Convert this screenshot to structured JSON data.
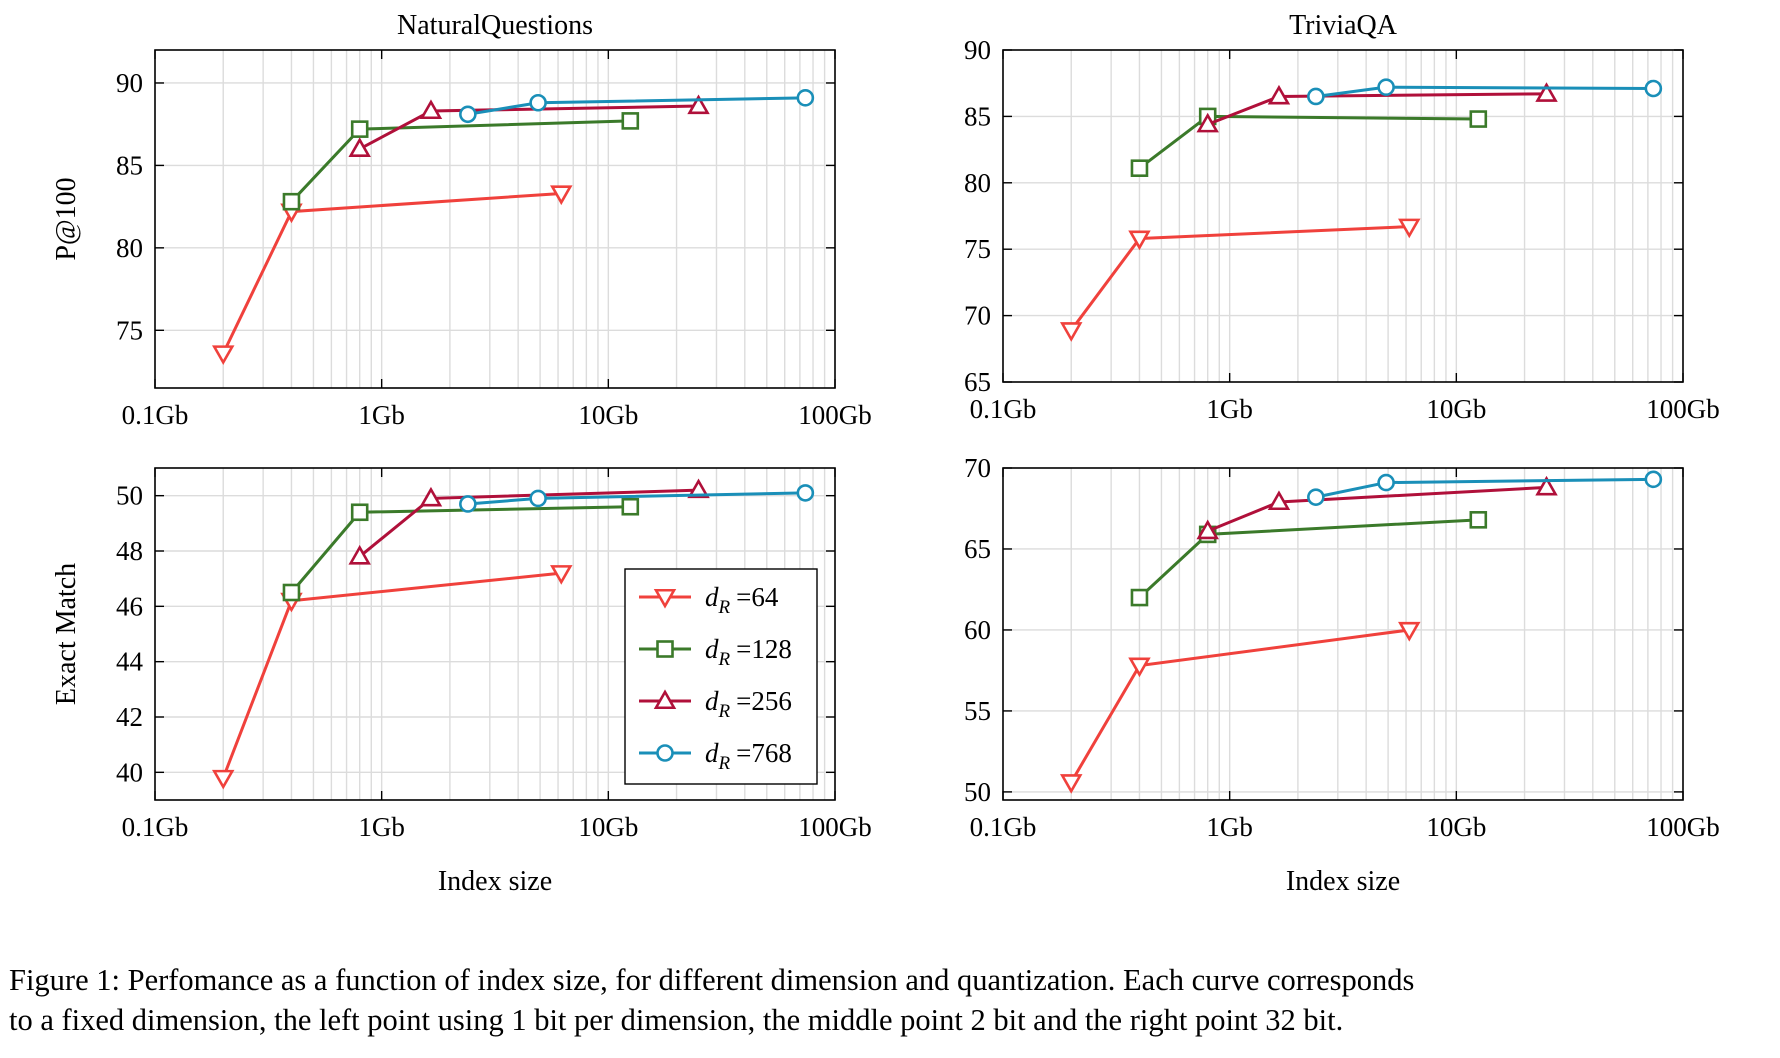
{
  "figure": {
    "caption_line1": "Figure 1: Perfomance as a function of index size, for different dimension and quantization. Each curve corresponds",
    "caption_line2": "to a fixed dimension, the left point using 1 bit per dimension, the middle point 2 bit and the right point 32 bit."
  },
  "colors": {
    "dR_64": "#f0413c",
    "dR_128": "#3b7a2a",
    "dR_256": "#b0103a",
    "dR_768": "#1a8fb8",
    "grid": "#dcdcdc",
    "axis": "#000000"
  },
  "legend": {
    "placement": "lower-right of bottom-left panel",
    "entries": [
      {
        "prefix": "d",
        "subscript": "R",
        "value": "=64",
        "series": "dR_64",
        "marker": "triangle-down"
      },
      {
        "prefix": "d",
        "subscript": "R",
        "value": "=128",
        "series": "dR_128",
        "marker": "square"
      },
      {
        "prefix": "d",
        "subscript": "R",
        "value": "=256",
        "series": "dR_256",
        "marker": "triangle-up"
      },
      {
        "prefix": "d",
        "subscript": "R",
        "value": "=768",
        "series": "dR_768",
        "marker": "circle"
      }
    ]
  },
  "chart_data": [
    {
      "type": "line",
      "title": "NaturalQuestions",
      "ylabel": "P@100",
      "xlabel": "",
      "xscale": "log",
      "xlim": [
        0.1,
        100
      ],
      "ylim": [
        71.5,
        92
      ],
      "xticks": [
        0.1,
        1,
        10,
        100
      ],
      "xtick_labels": [
        "0.1Gb",
        "1Gb",
        "10Gb",
        "100Gb"
      ],
      "yticks": [
        75,
        80,
        85,
        90
      ],
      "ytick_labels": [
        "75",
        "80",
        "85",
        "90"
      ],
      "grid": true,
      "series": [
        {
          "key": "dR_64",
          "x": [
            0.2,
            0.4,
            6.2
          ],
          "y": [
            73.6,
            82.2,
            83.3
          ]
        },
        {
          "key": "dR_128",
          "x": [
            0.4,
            0.8,
            12.5
          ],
          "y": [
            82.8,
            87.2,
            87.7
          ]
        },
        {
          "key": "dR_256",
          "x": [
            0.8,
            1.65,
            25
          ],
          "y": [
            86.0,
            88.3,
            88.6
          ]
        },
        {
          "key": "dR_768",
          "x": [
            2.4,
            4.9,
            74
          ],
          "y": [
            88.1,
            88.8,
            89.1
          ]
        }
      ]
    },
    {
      "type": "line",
      "title": "TriviaQA",
      "ylabel": "",
      "xlabel": "",
      "xscale": "log",
      "xlim": [
        0.1,
        100
      ],
      "ylim": [
        65,
        90
      ],
      "xticks": [
        0.1,
        1,
        10,
        100
      ],
      "xtick_labels": [
        "0.1Gb",
        "1Gb",
        "10Gb",
        "100Gb"
      ],
      "yticks": [
        65,
        70,
        75,
        80,
        85,
        90
      ],
      "ytick_labels": [
        "65",
        "70",
        "75",
        "80",
        "85",
        "90"
      ],
      "grid": true,
      "series": [
        {
          "key": "dR_64",
          "x": [
            0.2,
            0.4,
            6.2
          ],
          "y": [
            68.9,
            75.8,
            76.7
          ]
        },
        {
          "key": "dR_128",
          "x": [
            0.4,
            0.8,
            12.5
          ],
          "y": [
            81.1,
            85.0,
            84.8
          ]
        },
        {
          "key": "dR_256",
          "x": [
            0.8,
            1.65,
            25
          ],
          "y": [
            84.4,
            86.5,
            86.7
          ]
        },
        {
          "key": "dR_768",
          "x": [
            2.4,
            4.9,
            74
          ],
          "y": [
            86.5,
            87.2,
            87.1
          ]
        }
      ]
    },
    {
      "type": "line",
      "title": "",
      "ylabel": "Exact Match",
      "xlabel": "Index size",
      "xscale": "log",
      "xlim": [
        0.1,
        100
      ],
      "ylim": [
        39,
        51
      ],
      "xticks": [
        0.1,
        1,
        10,
        100
      ],
      "xtick_labels": [
        "0.1Gb",
        "1Gb",
        "10Gb",
        "100Gb"
      ],
      "yticks": [
        40,
        42,
        44,
        46,
        48,
        50
      ],
      "ytick_labels": [
        "40",
        "42",
        "44",
        "46",
        "48",
        "50"
      ],
      "grid": true,
      "series": [
        {
          "key": "dR_64",
          "x": [
            0.2,
            0.4,
            6.2
          ],
          "y": [
            39.8,
            46.2,
            47.2
          ]
        },
        {
          "key": "dR_128",
          "x": [
            0.4,
            0.8,
            12.5
          ],
          "y": [
            46.5,
            49.4,
            49.6
          ]
        },
        {
          "key": "dR_256",
          "x": [
            0.8,
            1.65,
            25
          ],
          "y": [
            47.8,
            49.9,
            50.2
          ]
        },
        {
          "key": "dR_768",
          "x": [
            2.4,
            4.9,
            74
          ],
          "y": [
            49.7,
            49.9,
            50.1
          ]
        }
      ]
    },
    {
      "type": "line",
      "title": "",
      "ylabel": "",
      "xlabel": "Index size",
      "xscale": "log",
      "xlim": [
        0.1,
        100
      ],
      "ylim": [
        49.5,
        70
      ],
      "xticks": [
        0.1,
        1,
        10,
        100
      ],
      "xtick_labels": [
        "0.1Gb",
        "1Gb",
        "10Gb",
        "100Gb"
      ],
      "yticks": [
        50,
        55,
        60,
        65,
        70
      ],
      "ytick_labels": [
        "50",
        "55",
        "60",
        "65",
        "70"
      ],
      "grid": true,
      "series": [
        {
          "key": "dR_64",
          "x": [
            0.2,
            0.4,
            6.2
          ],
          "y": [
            50.6,
            57.8,
            60.0
          ]
        },
        {
          "key": "dR_128",
          "x": [
            0.4,
            0.8,
            12.5
          ],
          "y": [
            62.0,
            65.9,
            66.8
          ]
        },
        {
          "key": "dR_256",
          "x": [
            0.8,
            1.65,
            25
          ],
          "y": [
            66.1,
            67.9,
            68.8
          ]
        },
        {
          "key": "dR_768",
          "x": [
            2.4,
            4.9,
            74
          ],
          "y": [
            68.2,
            69.1,
            69.3
          ]
        }
      ]
    }
  ]
}
